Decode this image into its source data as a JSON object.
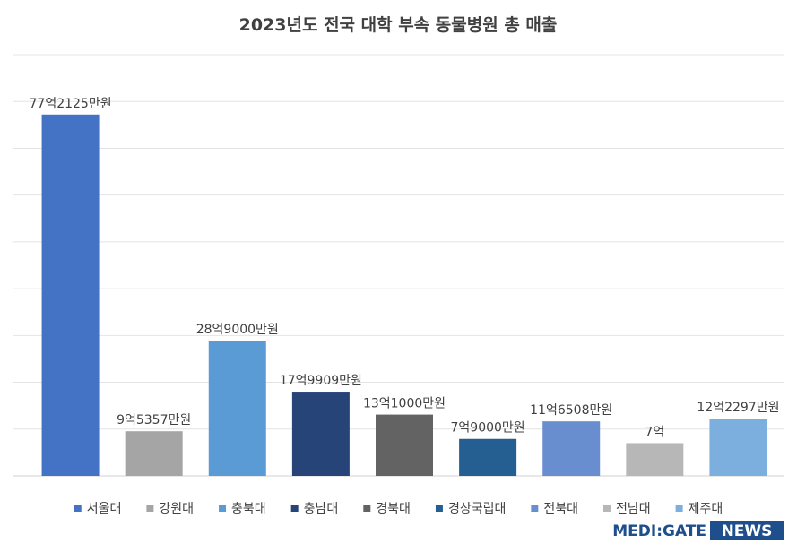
{
  "chart_data": {
    "type": "bar",
    "title": "2023년도 전국 대학 부속 동물병원 총 매출",
    "categories": [
      "서울대",
      "강원대",
      "충북대",
      "충남대",
      "경북대",
      "경상국립대",
      "전북대",
      "전남대",
      "제주대"
    ],
    "values": [
      7721250000,
      953570000,
      2890000000,
      1799090000,
      1310000000,
      790000000,
      1165080000,
      700000000,
      1222970000
    ],
    "data_labels": [
      "77억2125만원",
      "9억5357만원",
      "28억9000만원",
      "17억9909만원",
      "13억1000만원",
      "7억9000만원",
      "11억6508만원",
      "7억",
      "12억2297만원"
    ],
    "colors": [
      "#4472c4",
      "#a5a5a5",
      "#5b9bd5",
      "#264478",
      "#636363",
      "#255e91",
      "#698ed0",
      "#b7b7b7",
      "#7cafdd"
    ],
    "ylim": [
      0,
      9000000000
    ],
    "grid": true,
    "legend_position": "bottom"
  },
  "brand": {
    "left": "MEDI:GATE",
    "right": "NEWS",
    "left_color": "#1f4e8c",
    "right_bg": "#1f4e8c"
  }
}
